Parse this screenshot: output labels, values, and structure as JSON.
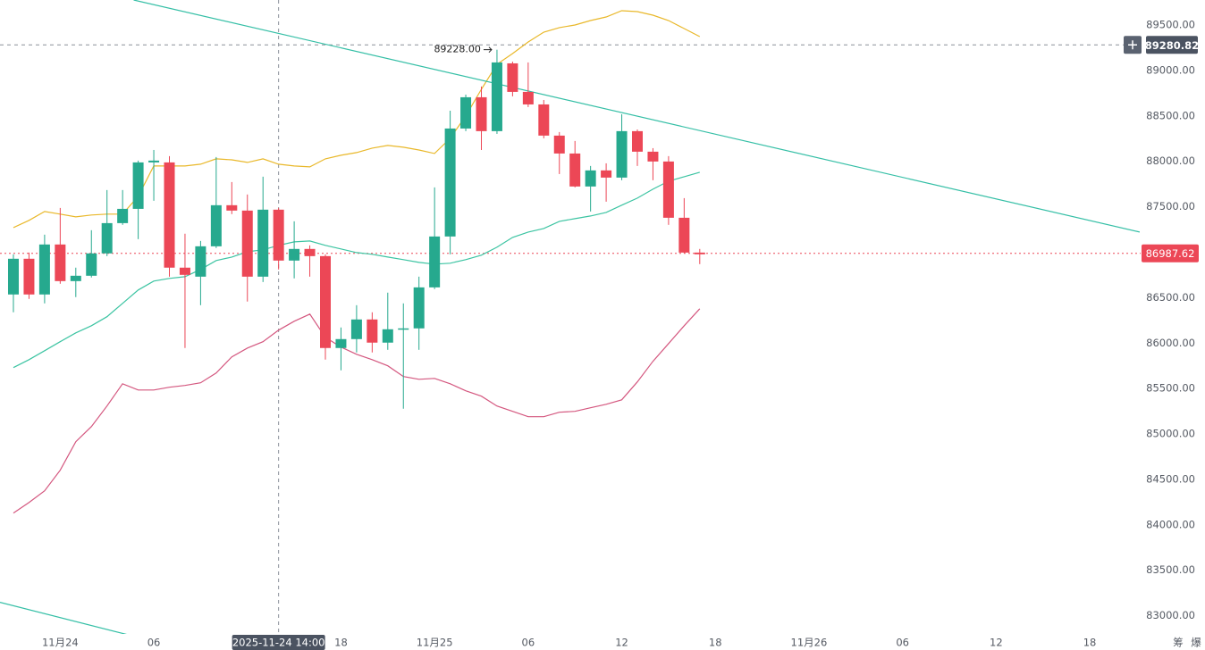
{
  "chart_data": {
    "type": "candlestick",
    "ylim": [
      82800,
      89775
    ],
    "yticks": [
      {
        "value": 83000,
        "label": "83000.00"
      },
      {
        "value": 83500,
        "label": "83500.00"
      },
      {
        "value": 84000,
        "label": "84000.00"
      },
      {
        "value": 84500,
        "label": "84500.00"
      },
      {
        "value": 85000,
        "label": "85000.00"
      },
      {
        "value": 85500,
        "label": "85500.00"
      },
      {
        "value": 86000,
        "label": "86000.00"
      },
      {
        "value": 86500,
        "label": "86500.00"
      },
      {
        "value": 87000,
        "label": "87000.00"
      },
      {
        "value": 87500,
        "label": "87500.00"
      },
      {
        "value": 88000,
        "label": "88000.00"
      },
      {
        "value": 88500,
        "label": "88500.00"
      },
      {
        "value": 89000,
        "label": "89000.00"
      },
      {
        "value": 89500,
        "label": "89500.00"
      }
    ],
    "categories": [
      null,
      null,
      null,
      "11月24",
      null,
      null,
      null,
      null,
      null,
      "06",
      null,
      null,
      null,
      null,
      null,
      null,
      null,
      "2025-11-24 14:00",
      null,
      null,
      null,
      "18",
      null,
      null,
      null,
      null,
      null,
      "11月25",
      null,
      null,
      null,
      null,
      null,
      "06",
      null,
      null,
      null,
      null,
      null,
      "12",
      null,
      null,
      null,
      null,
      null,
      "18",
      null,
      null,
      null,
      null,
      null,
      "11月26",
      null,
      null,
      null,
      null,
      null,
      "06",
      null,
      null,
      null,
      null,
      null,
      "12",
      null,
      null,
      null,
      null,
      null,
      "18",
      null,
      null
    ],
    "up_color": "#26a98e",
    "down_color": "#ec4756",
    "open": [
      86535,
      86928,
      86535,
      87085,
      86682,
      86741,
      86987,
      87320,
      87477,
      87988,
      87988,
      86830,
      86731,
      87065,
      87517,
      87458,
      86731,
      87468,
      86908,
      87036,
      86957,
      85946,
      86044,
      86260,
      86005,
      86152,
      86162,
      86613,
      87173,
      88361,
      88705,
      88332,
      89078,
      88764,
      88626,
      88283,
      88086,
      87723,
      87900,
      87821,
      88332,
      88106,
      87998,
      87379,
      86996,
      null,
      null,
      null,
      null,
      null,
      null,
      null,
      null,
      null,
      null,
      null,
      null,
      null,
      null,
      null,
      null,
      null,
      null,
      null,
      null,
      null,
      null,
      null,
      null,
      null,
      null,
      null
    ],
    "high": [
      86977,
      86996,
      87193,
      87487,
      86830,
      87242,
      87684,
      87684,
      88008,
      88125,
      88057,
      87203,
      87124,
      88047,
      87772,
      87635,
      87831,
      87487,
      87340,
      87075,
      86977,
      86172,
      86417,
      86339,
      86555,
      86437,
      86731,
      87713,
      88557,
      88734,
      88823,
      89228,
      89097,
      89088,
      88675,
      88322,
      88224,
      87949,
      87978,
      88518,
      88351,
      88145,
      88057,
      87595,
      87036,
      null,
      null,
      null,
      null,
      null,
      null,
      null,
      null,
      null,
      null,
      null,
      null,
      null,
      null,
      null,
      null,
      null,
      null,
      null,
      null,
      null,
      null,
      null,
      null,
      null,
      null,
      null
    ],
    "low": [
      86339,
      86486,
      86437,
      86653,
      86506,
      86722,
      86957,
      87301,
      87144,
      87566,
      86731,
      85946,
      86417,
      87046,
      87419,
      86457,
      86672,
      86810,
      86712,
      86731,
      85818,
      85700,
      85897,
      85897,
      85926,
      85278,
      85926,
      86594,
      86977,
      88332,
      88125,
      88302,
      88715,
      88597,
      88253,
      87860,
      87713,
      87448,
      87556,
      87792,
      87949,
      87792,
      87301,
      86987,
      86869,
      null,
      null,
      null,
      null,
      null,
      null,
      null,
      null,
      null,
      null,
      null,
      null,
      null,
      null,
      null,
      null,
      null,
      null,
      null,
      null,
      null,
      null,
      null,
      null,
      null,
      null,
      null
    ],
    "close": [
      86928,
      86535,
      87085,
      86682,
      86741,
      86987,
      87320,
      87477,
      87988,
      88008,
      86830,
      86751,
      87065,
      87517,
      87458,
      86731,
      87468,
      86908,
      87036,
      86957,
      85946,
      86044,
      86260,
      86005,
      86152,
      86162,
      86613,
      87173,
      88361,
      88705,
      88332,
      89088,
      88764,
      88626,
      88283,
      88086,
      87723,
      87900,
      87821,
      88332,
      88106,
      87998,
      87379,
      86996,
      86977,
      null,
      null,
      null,
      null,
      null,
      null,
      null,
      null,
      null,
      null,
      null,
      null,
      null,
      null,
      null,
      null,
      null,
      null,
      null,
      null,
      null,
      null,
      null,
      null,
      null,
      null,
      null
    ],
    "overlays": [
      {
        "color": "#e9b82a",
        "values": [
          87271,
          87350,
          87448,
          87419,
          87389,
          87409,
          87419,
          87419,
          87615,
          87949,
          87949,
          87949,
          87968,
          88027,
          88017,
          87988,
          88027,
          87968,
          87949,
          87939,
          88027,
          88067,
          88096,
          88145,
          88175,
          88155,
          88125,
          88086,
          88253,
          88499,
          88793,
          89068,
          89186,
          89313,
          89421,
          89471,
          89500,
          89549,
          89588,
          89657,
          89647,
          89608,
          89549,
          89461,
          89372,
          null,
          null,
          null,
          null,
          null,
          null,
          null,
          null,
          null,
          null,
          null,
          null,
          null,
          null,
          null,
          null,
          null,
          null,
          null,
          null,
          null,
          null,
          null,
          null,
          null,
          null,
          null
        ]
      },
      {
        "color": "#3cc4a2",
        "values": [
          85730,
          85818,
          85916,
          86015,
          86113,
          86191,
          86290,
          86437,
          86584,
          86682,
          86712,
          86731,
          86810,
          86908,
          86947,
          87006,
          87026,
          87075,
          87114,
          87124,
          87075,
          87036,
          86996,
          86977,
          86947,
          86918,
          86888,
          86869,
          86879,
          86918,
          86967,
          87055,
          87163,
          87222,
          87261,
          87340,
          87369,
          87399,
          87438,
          87517,
          87595,
          87693,
          87782,
          87831,
          87880,
          null,
          null,
          null,
          null,
          null,
          null,
          null,
          null,
          null,
          null,
          null,
          null,
          null,
          null,
          null,
          null,
          null,
          null,
          null,
          null,
          null,
          null,
          null,
          null,
          null,
          null,
          null
        ]
      },
      {
        "color": "#d4577f",
        "values": [
          84130,
          84247,
          84375,
          84601,
          84915,
          85082,
          85308,
          85553,
          85484,
          85484,
          85514,
          85534,
          85563,
          85671,
          85848,
          85946,
          86015,
          86142,
          86240,
          86319,
          86064,
          85956,
          85877,
          85818,
          85750,
          85632,
          85602,
          85612,
          85553,
          85475,
          85416,
          85308,
          85249,
          85190,
          85190,
          85239,
          85249,
          85288,
          85327,
          85376,
          85573,
          85799,
          85995,
          86191,
          86378,
          null,
          null,
          null,
          null,
          null,
          null,
          null,
          null,
          null,
          null,
          null,
          null,
          null,
          null,
          null,
          null,
          null,
          null,
          null,
          null,
          null,
          null,
          null,
          null,
          null,
          null,
          null
        ]
      }
    ],
    "trendlines": [
      {
        "color": "#35bfa6",
        "points": [
          [
            7.71,
            89775
          ],
          [
            72.2,
            87222
          ]
        ]
      },
      {
        "color": "#35bfa6",
        "points": [
          [
            -0.86,
            83148
          ],
          [
            7.71,
            82775
          ]
        ]
      }
    ],
    "high_marker": {
      "value": 89228,
      "label": "89228.00"
    },
    "crosshair_price": 89280.82,
    "last_price": 86987.62,
    "toolbar_labels": [
      "筹",
      "爆"
    ]
  }
}
